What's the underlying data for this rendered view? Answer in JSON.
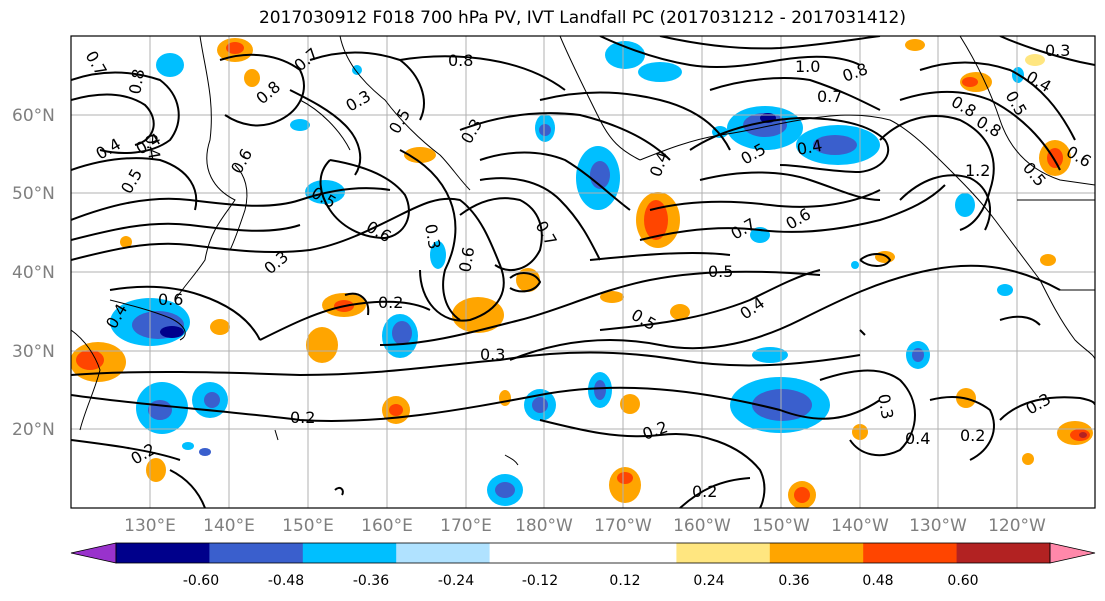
{
  "title": "2017030912 F018 700 hPa PV, IVT Landfall PC (2017031212 - 2017031412)",
  "lat_labels": [
    "60°N",
    "50°N",
    "40°N",
    "30°N",
    "20°N"
  ],
  "lon_labels": [
    "130°E",
    "140°E",
    "150°E",
    "160°E",
    "170°E",
    "180°W",
    "170°W",
    "160°W",
    "150°W",
    "140°W",
    "130°W",
    "120°W"
  ],
  "colorbar": {
    "colors": [
      "#9932cc",
      "#00008b",
      "#3a5fcd",
      "#00bfff",
      "#b0e2ff",
      "#ffffff",
      "#ffffff",
      "#ffe680",
      "#ffa500",
      "#ff4500",
      "#b22222",
      "#ff88aa"
    ],
    "tick_labels": [
      "-0.60",
      "-0.48",
      "-0.36",
      "-0.24",
      "-0.12",
      "0.12",
      "0.24",
      "0.36",
      "0.48",
      "0.60"
    ]
  },
  "contour_labels": [
    "0.8",
    "0.7",
    "0.8",
    "0.3",
    "1.0",
    "0.8",
    "0.7",
    "0.3",
    "0.4",
    "0.5",
    "0.8",
    "0.4",
    "0.6",
    "0.8",
    "0.5",
    "0.4",
    "0.7",
    "1.2",
    "0.5",
    "0.6",
    "0.3",
    "0.5",
    "0.3",
    "0.6",
    "0.6",
    "0.2",
    "0.4",
    "0.6",
    "0.5",
    "0.3",
    "0.4",
    "0.5",
    "0.7",
    "0.6",
    "0.4",
    "0.5",
    "0.2",
    "0.3",
    "0.2",
    "0.2",
    "0.3",
    "0.4",
    "0.2",
    "0.3",
    "0.2",
    "0.7",
    "0.8",
    "0.5",
    "0.4",
    "0.4"
  ]
}
